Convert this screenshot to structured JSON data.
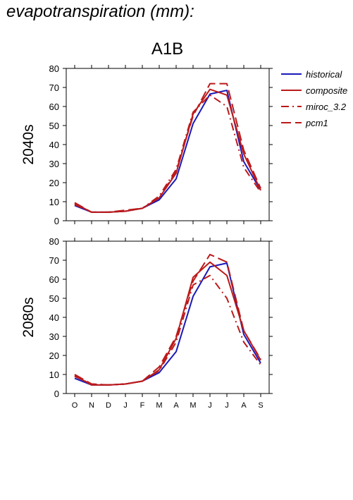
{
  "title": "evapotranspiration (mm):",
  "scenario": "A1B",
  "colors": {
    "historical": "#1a1ab8",
    "projection": "#bb1a1a",
    "axis": "#000000"
  },
  "chart_data": [
    {
      "type": "line",
      "row_label": "2040s",
      "categories": [
        "O",
        "N",
        "D",
        "J",
        "F",
        "M",
        "A",
        "M",
        "J",
        "J",
        "A",
        "S"
      ],
      "ylim": [
        0,
        80
      ],
      "yticks": [
        0,
        10,
        20,
        30,
        40,
        50,
        60,
        70,
        80
      ],
      "series": [
        {
          "name": "historical",
          "style": "solid",
          "color": "#1a1ab8",
          "values": [
            8,
            4.5,
            4.5,
            5,
            6.5,
            11,
            22,
            51,
            66.5,
            68.5,
            31,
            16
          ]
        },
        {
          "name": "composite",
          "style": "solid",
          "color": "#bb1a1a",
          "values": [
            9,
            4.5,
            4.5,
            5,
            6.5,
            12,
            25,
            56,
            69,
            66,
            35,
            16
          ]
        },
        {
          "name": "miroc_3.2",
          "style": "dashdot",
          "color": "#bb1a1a",
          "values": [
            8.5,
            4.5,
            4.5,
            5,
            6.5,
            13,
            27,
            57,
            66,
            60,
            28,
            15
          ]
        },
        {
          "name": "pcm1",
          "style": "dashed",
          "color": "#bb1a1a",
          "values": [
            9.5,
            4.5,
            4.5,
            5.5,
            6.5,
            12,
            26,
            55,
            72,
            72,
            37,
            17
          ]
        }
      ]
    },
    {
      "type": "line",
      "row_label": "2080s",
      "categories": [
        "O",
        "N",
        "D",
        "J",
        "F",
        "M",
        "A",
        "M",
        "J",
        "J",
        "A",
        "S"
      ],
      "ylim": [
        0,
        80
      ],
      "yticks": [
        0,
        10,
        20,
        30,
        40,
        50,
        60,
        70,
        80
      ],
      "series": [
        {
          "name": "historical",
          "style": "solid",
          "color": "#1a1ab8",
          "values": [
            8,
            4.5,
            4.5,
            5,
            6.5,
            11,
            22,
            51,
            66.5,
            68.5,
            31,
            16
          ]
        },
        {
          "name": "composite",
          "style": "solid",
          "color": "#bb1a1a",
          "values": [
            9.5,
            4.5,
            4.5,
            5,
            6.5,
            12.5,
            29,
            61,
            69,
            62,
            33,
            17.5
          ]
        },
        {
          "name": "miroc_3.2",
          "style": "dashdot",
          "color": "#bb1a1a",
          "values": [
            9,
            5,
            4.5,
            5,
            6.5,
            12,
            27,
            57,
            62,
            50,
            27,
            15
          ]
        },
        {
          "name": "pcm1",
          "style": "dashed",
          "color": "#bb1a1a",
          "values": [
            10,
            5,
            4.5,
            5,
            6.5,
            14,
            30,
            59,
            73,
            69,
            33,
            18
          ]
        }
      ]
    }
  ],
  "legend": [
    {
      "label": "historical",
      "style": "solid",
      "color": "#1a1ab8"
    },
    {
      "label": "composite",
      "style": "solid",
      "color": "#bb1a1a"
    },
    {
      "label": "miroc_3.2",
      "style": "dashdot",
      "color": "#bb1a1a"
    },
    {
      "label": "pcm1",
      "style": "dashed",
      "color": "#bb1a1a"
    }
  ]
}
